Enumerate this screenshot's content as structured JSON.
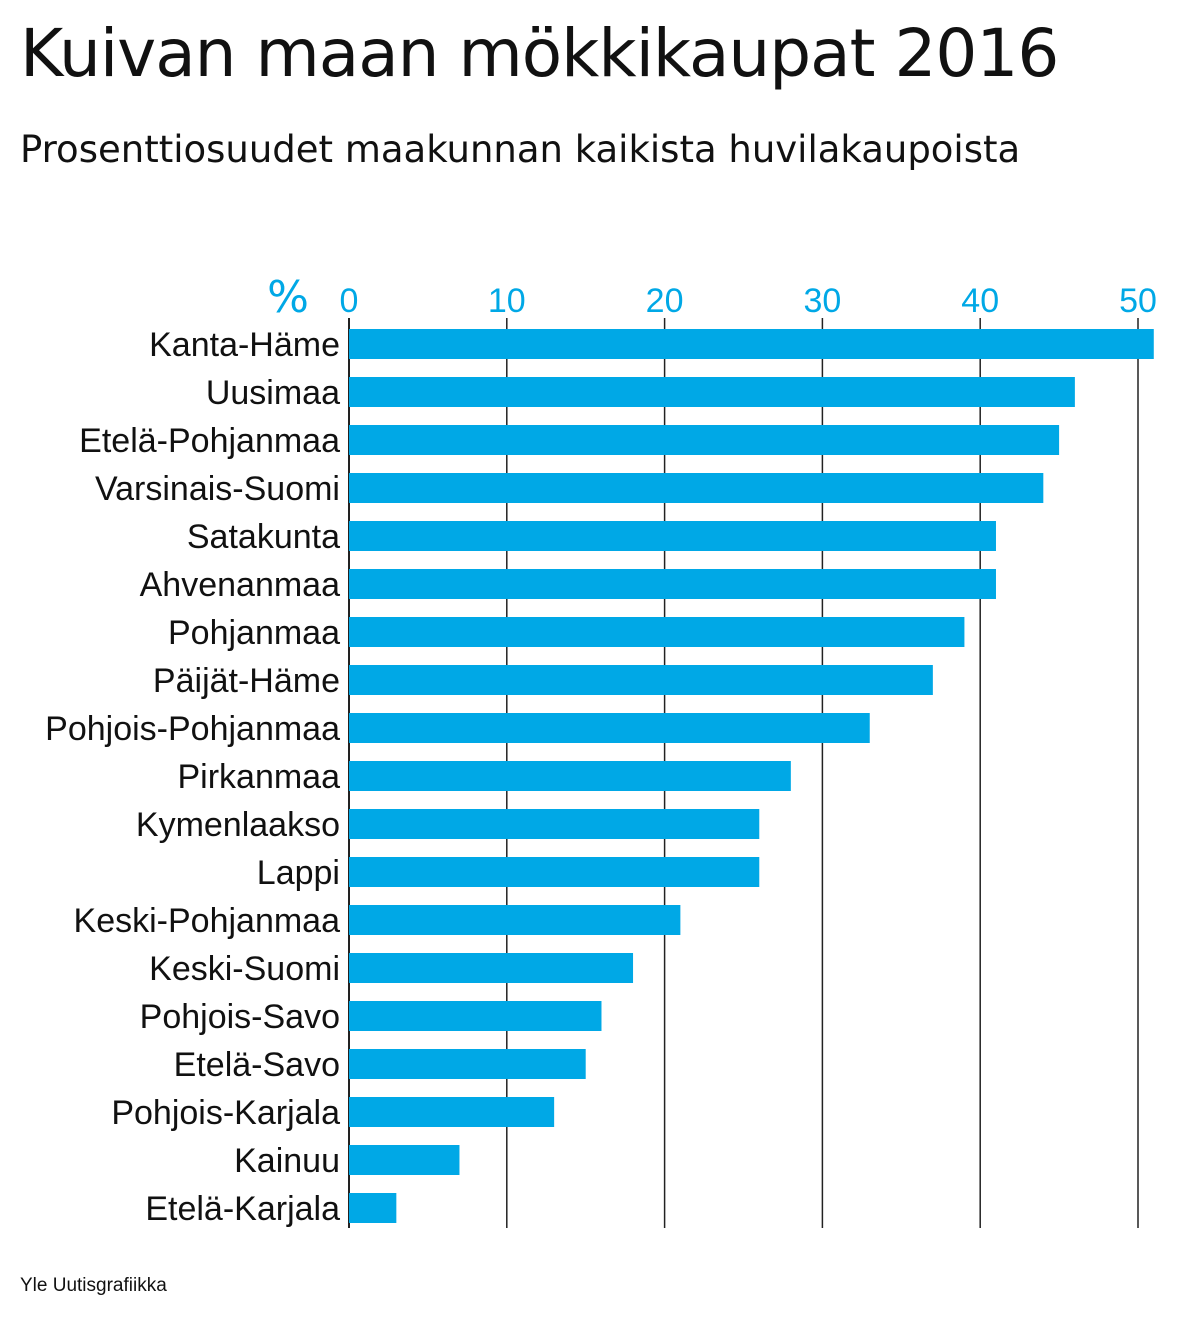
{
  "title": "Kuivan maan mökkikaupat 2016",
  "subtitle": "Prosenttiosuudet maakunnan kaikista huvilakaupoista",
  "source": "Yle Uutisgrafiikka",
  "colors": {
    "bar": "#00a8e6",
    "axis_text": "#00a8e6",
    "grid": "#222222",
    "label": "#111111"
  },
  "chart_data": {
    "type": "bar",
    "orientation": "horizontal",
    "title": "Kuivan maan mökkikaupat 2016",
    "subtitle": "Prosenttiosuudet maakunnan kaikista huvilakaupoista",
    "xlabel": "%",
    "ylabel": "",
    "xlim": [
      0,
      51
    ],
    "xticks": [
      0,
      10,
      20,
      30,
      40,
      50
    ],
    "grid": true,
    "categories": [
      "Kanta-Häme",
      "Uusimaa",
      "Etelä-Pohjanmaa",
      "Varsinais-Suomi",
      "Satakunta",
      "Ahvenanmaa",
      "Pohjanmaa",
      "Päijät-Häme",
      "Pohjois-Pohjanmaa",
      "Pirkanmaa",
      "Kymenlaakso",
      "Lappi",
      "Keski-Pohjanmaa",
      "Keski-Suomi",
      "Pohjois-Savo",
      "Etelä-Savo",
      "Pohjois-Karjala",
      "Kainuu",
      "Etelä-Karjala"
    ],
    "values": [
      51,
      46,
      45,
      44,
      41,
      41,
      39,
      37,
      33,
      28,
      26,
      26,
      21,
      18,
      16,
      15,
      13,
      7,
      3
    ]
  }
}
